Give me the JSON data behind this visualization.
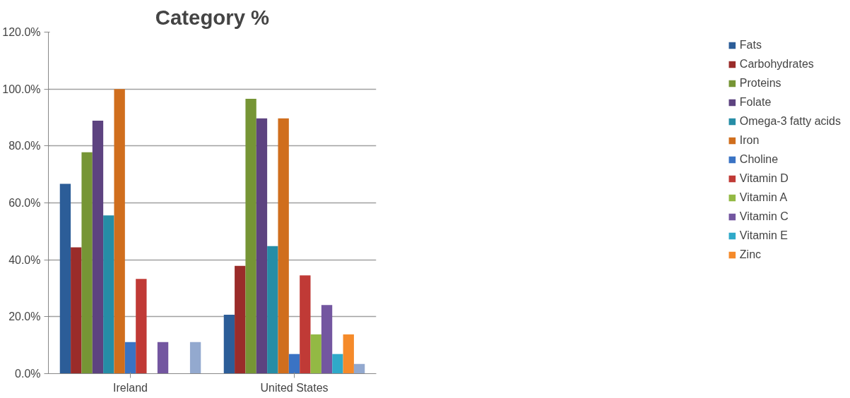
{
  "chart_data": {
    "type": "bar",
    "title": "Category %",
    "categories": [
      "Ireland",
      "United States"
    ],
    "series": [
      {
        "name": "Fats",
        "color": "#2c5d98",
        "values": [
          66.7,
          20.7
        ]
      },
      {
        "name": "Carbohydrates",
        "color": "#9a2c2a",
        "values": [
          44.4,
          37.9
        ]
      },
      {
        "name": "Proteins",
        "color": "#769535",
        "values": [
          77.8,
          96.6
        ]
      },
      {
        "name": "Folate",
        "color": "#5d4380",
        "values": [
          88.9,
          89.7
        ]
      },
      {
        "name": "Omega-3 fatty acids",
        "color": "#268da6",
        "values": [
          55.6,
          44.8
        ]
      },
      {
        "name": "Iron",
        "color": "#d06e1d",
        "values": [
          100,
          89.7
        ]
      },
      {
        "name": "Choline",
        "color": "#3a73c4",
        "values": [
          11.1,
          6.9
        ]
      },
      {
        "name": "Vitamin D",
        "color": "#c03a36",
        "values": [
          33.3,
          34.5
        ]
      },
      {
        "name": "Vitamin A",
        "color": "#93b944",
        "values": [
          0,
          13.8
        ]
      },
      {
        "name": "Vitamin C",
        "color": "#7356a0",
        "values": [
          11.1,
          24.1
        ]
      },
      {
        "name": "Vitamin E",
        "color": "#2fa9c9",
        "values": [
          0,
          6.9
        ]
      },
      {
        "name": "Zinc",
        "color": "#f58a2a",
        "values": [
          0,
          13.8
        ]
      },
      {
        "color": "#93a9cf",
        "values": [
          11.1,
          3.4
        ]
      }
    ],
    "ylim": [
      0,
      120
    ],
    "yticks": [
      {
        "value": 0,
        "label": "0.0%"
      },
      {
        "value": 20,
        "label": "20.0%"
      },
      {
        "value": 40,
        "label": "40.0%"
      },
      {
        "value": 60,
        "label": "60.0%"
      },
      {
        "value": 80,
        "label": "80.0%"
      },
      {
        "value": 100,
        "label": "100.0%"
      },
      {
        "value": 120,
        "label": "120.0%"
      }
    ],
    "grid": "y",
    "legend": "right"
  }
}
